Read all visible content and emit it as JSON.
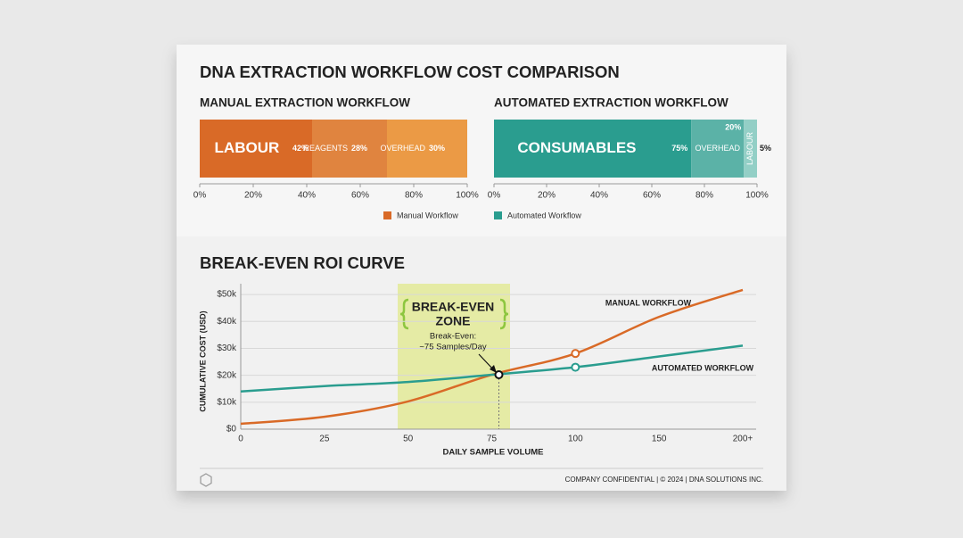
{
  "title": "DNA EXTRACTION WORKFLOW COST COMPARISON",
  "legend": [
    {
      "name": "Manual Workflow",
      "color": "#d96a27"
    },
    {
      "name": "Automated Workflow",
      "color": "#2a9d8f"
    }
  ],
  "chart_data": [
    {
      "type": "stacked_bar",
      "title": "MANUAL EXTRACTION WORKFLOW",
      "series": [
        {
          "name": "LABOUR",
          "color": "#d96a27",
          "values": [
            42
          ],
          "value_labels": [
            "42%"
          ]
        },
        {
          "name": "REAGENTS",
          "color": "#e0843f",
          "values": [
            28
          ],
          "value_labels": [
            "28%"
          ]
        },
        {
          "name": "OVERHEAD",
          "color": "#eb9a45",
          "values": [
            30
          ],
          "value_labels": [
            "30%"
          ]
        }
      ],
      "xlim": [
        0,
        100
      ],
      "xticks": [
        {
          "value": 0,
          "label": "0%"
        },
        {
          "value": 20,
          "label": "20%"
        },
        {
          "value": 40,
          "label": "40%"
        },
        {
          "value": 60,
          "label": "60%"
        },
        {
          "value": 80,
          "label": "80%"
        },
        {
          "value": 100,
          "label": "100%"
        }
      ]
    },
    {
      "type": "stacked_bar",
      "title": "AUTOMATED EXTRACTION WORKFLOW",
      "series": [
        {
          "name": "CONSUMABLES",
          "color": "#2a9d8f",
          "values": [
            75
          ],
          "value_labels": [
            "75%"
          ]
        },
        {
          "name": "OVERHEAD",
          "color": "#5bb2a7",
          "values": [
            20
          ],
          "value_labels": [
            "20%"
          ]
        },
        {
          "name": "LABOUR",
          "color": "#93cfc6",
          "values": [
            5
          ],
          "value_labels": [
            "5%"
          ]
        }
      ],
      "xlim": [
        0,
        100
      ],
      "xticks": [
        {
          "value": 0,
          "label": "0%"
        },
        {
          "value": 20,
          "label": "20%"
        },
        {
          "value": 40,
          "label": "40%"
        },
        {
          "value": 60,
          "label": "60%"
        },
        {
          "value": 80,
          "label": "80%"
        },
        {
          "value": 100,
          "label": "100%"
        }
      ]
    },
    {
      "type": "line",
      "title": "BREAK-EVEN ROI CURVE",
      "x_label": "DAILY SAMPLE VOLUME",
      "y_label": "CUMULATIVE COST (USD)",
      "categories": [
        "0",
        "25",
        "50",
        "75",
        "100",
        "150",
        "200+"
      ],
      "series": [
        {
          "name": "MANUAL WORKFLOW",
          "color": "#d96a27",
          "values": [
            2000,
            4600,
            10300,
            20200,
            28100,
            41700,
            51700
          ]
        },
        {
          "name": "AUTOMATED WORKFLOW",
          "color": "#2a9d8f",
          "values": [
            14000,
            16000,
            17500,
            20200,
            23000,
            27000,
            31000
          ]
        }
      ],
      "ylim": [
        0,
        54000
      ],
      "yticks": [
        {
          "value": 0,
          "label": "$0"
        },
        {
          "value": 10000,
          "label": "$10k"
        },
        {
          "value": 20000,
          "label": "$20k"
        },
        {
          "value": 30000,
          "label": "$30k"
        },
        {
          "value": 40000,
          "label": "$40k"
        },
        {
          "value": 50000,
          "label": "$50k"
        }
      ],
      "grid": true,
      "annotations": [
        "BREAK-EVEN",
        "ZONE",
        "Break-Even:",
        "~75 Samples/Day"
      ]
    }
  ],
  "footer": "COMPANY CONFIDENTIAL | © 2024 | DNA SOLUTIONS INC."
}
